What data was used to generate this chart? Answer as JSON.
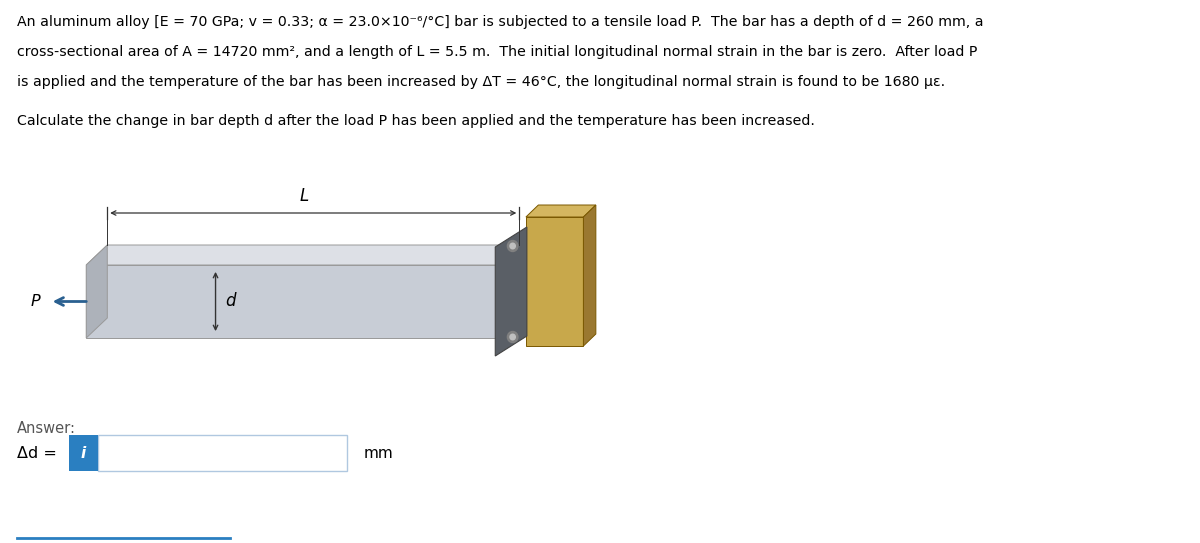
{
  "line1": "An aluminum alloy [E = 70 GPa; v = 0.33; α = 23.0×10⁻⁶/°C] bar is subjected to a tensile load P.  The bar has a depth of d = 260 mm, a",
  "line2": "cross-sectional area of A = 14720 mm², and a length of L = 5.5 m.  The initial longitudinal normal strain in the bar is zero.  After load P",
  "line3": "is applied and the temperature of the bar has been increased by ΔT = 46°C, the longitudinal normal strain is found to be 1680 με.",
  "question_text": "Calculate the change in bar depth d after the load P has been applied and the temperature has been increased.",
  "answer_label": "Δd =",
  "units_label": "mm",
  "bg_color": "#ffffff",
  "text_color": "#000000",
  "bar_front_color": "#c8cdd6",
  "bar_top_color": "#dde0e6",
  "bar_right_color": "#adb2ba",
  "bar_edge_color": "#999999",
  "plate_color": "#5a5f66",
  "plate_edge_color": "#444444",
  "wall_front_color": "#c8a84b",
  "wall_top_color": "#d4b660",
  "wall_right_color": "#9a7830",
  "wall_edge_color": "#7a5800",
  "bolt_outer_color": "#808080",
  "bolt_inner_color": "#c0c0c0",
  "arrow_color": "#555555",
  "P_arrow_color": "#2a6090",
  "input_box_blue": "#2a7fc1",
  "input_box_bg": "#f5f5f5",
  "input_box_border": "#b0c8e0",
  "bottom_line_color": "#2a7fc1",
  "answer_text_color": "#555555"
}
